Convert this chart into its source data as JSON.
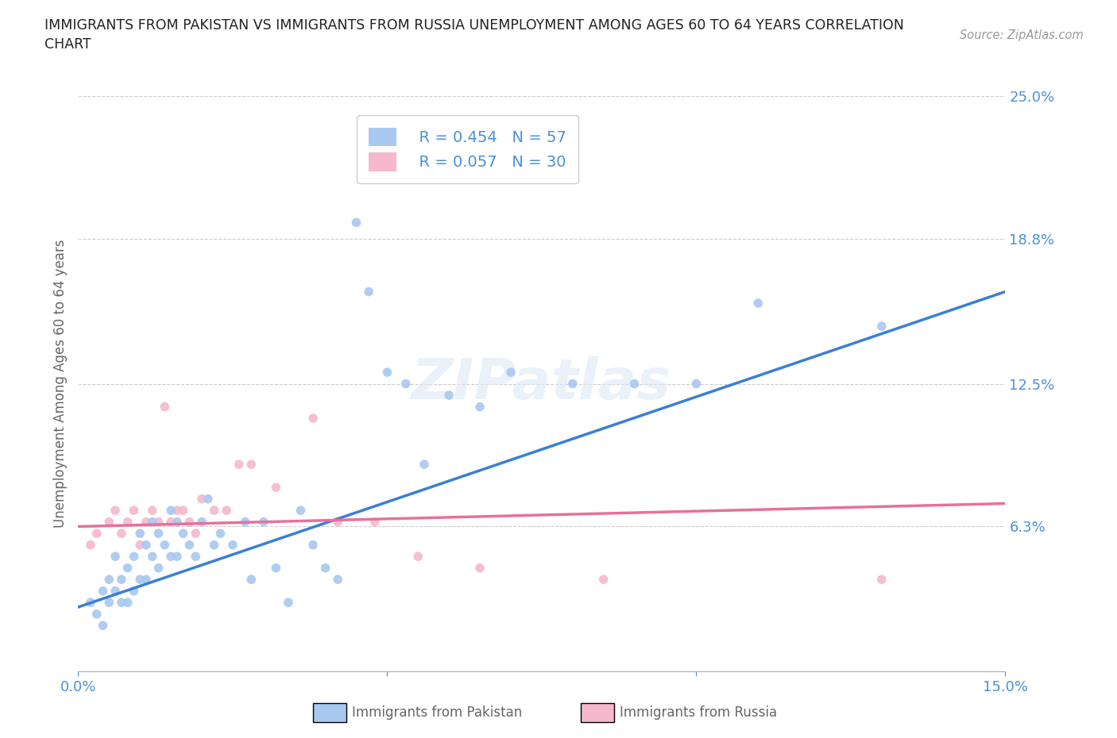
{
  "title": "IMMIGRANTS FROM PAKISTAN VS IMMIGRANTS FROM RUSSIA UNEMPLOYMENT AMONG AGES 60 TO 64 YEARS CORRELATION\nCHART",
  "source_text": "Source: ZipAtlas.com",
  "ylabel": "Unemployment Among Ages 60 to 64 years",
  "xlim": [
    0.0,
    0.15
  ],
  "ylim": [
    0.0,
    0.25
  ],
  "yticks": [
    0.0,
    0.063,
    0.125,
    0.188,
    0.25
  ],
  "ytick_labels": [
    "",
    "6.3%",
    "12.5%",
    "18.8%",
    "25.0%"
  ],
  "xticks": [
    0.0,
    0.05,
    0.1,
    0.15
  ],
  "xtick_labels": [
    "0.0%",
    "",
    "",
    "15.0%"
  ],
  "background_color": "#ffffff",
  "grid_color": "#cccccc",
  "pakistan_color": "#a8c8f0",
  "russia_color": "#f5b8cc",
  "pakistan_line_color": "#3a7fd5",
  "russia_line_color": "#e8709a",
  "legend_R1": "R = 0.454",
  "legend_N1": "N = 57",
  "legend_R2": "R = 0.057",
  "legend_N2": "N = 30",
  "label_pakistan": "Immigrants from Pakistan",
  "label_russia": "Immigrants from Russia",
  "watermark": "ZIPatlas",
  "pakistan_x": [
    0.002,
    0.003,
    0.004,
    0.004,
    0.005,
    0.005,
    0.006,
    0.006,
    0.007,
    0.007,
    0.008,
    0.008,
    0.009,
    0.009,
    0.01,
    0.01,
    0.011,
    0.011,
    0.012,
    0.012,
    0.013,
    0.013,
    0.014,
    0.015,
    0.015,
    0.016,
    0.016,
    0.017,
    0.018,
    0.019,
    0.02,
    0.021,
    0.022,
    0.023,
    0.025,
    0.027,
    0.028,
    0.03,
    0.032,
    0.034,
    0.036,
    0.038,
    0.04,
    0.042,
    0.045,
    0.047,
    0.05,
    0.053,
    0.056,
    0.06,
    0.065,
    0.07,
    0.08,
    0.09,
    0.1,
    0.11,
    0.13
  ],
  "pakistan_y": [
    0.03,
    0.025,
    0.035,
    0.02,
    0.04,
    0.03,
    0.05,
    0.035,
    0.04,
    0.03,
    0.045,
    0.03,
    0.05,
    0.035,
    0.06,
    0.04,
    0.055,
    0.04,
    0.065,
    0.05,
    0.06,
    0.045,
    0.055,
    0.07,
    0.05,
    0.065,
    0.05,
    0.06,
    0.055,
    0.05,
    0.065,
    0.075,
    0.055,
    0.06,
    0.055,
    0.065,
    0.04,
    0.065,
    0.045,
    0.03,
    0.07,
    0.055,
    0.045,
    0.04,
    0.195,
    0.165,
    0.13,
    0.125,
    0.09,
    0.12,
    0.115,
    0.13,
    0.125,
    0.125,
    0.125,
    0.16,
    0.15
  ],
  "russia_x": [
    0.002,
    0.003,
    0.005,
    0.006,
    0.007,
    0.008,
    0.009,
    0.01,
    0.011,
    0.012,
    0.013,
    0.014,
    0.015,
    0.016,
    0.017,
    0.018,
    0.019,
    0.02,
    0.022,
    0.024,
    0.026,
    0.028,
    0.032,
    0.038,
    0.042,
    0.048,
    0.055,
    0.065,
    0.085,
    0.13
  ],
  "russia_y": [
    0.055,
    0.06,
    0.065,
    0.07,
    0.06,
    0.065,
    0.07,
    0.055,
    0.065,
    0.07,
    0.065,
    0.115,
    0.065,
    0.07,
    0.07,
    0.065,
    0.06,
    0.075,
    0.07,
    0.07,
    0.09,
    0.09,
    0.08,
    0.11,
    0.065,
    0.065,
    0.05,
    0.045,
    0.04,
    0.04
  ],
  "pak_line_x0": 0.0,
  "pak_line_y0": 0.028,
  "pak_line_x1": 0.15,
  "pak_line_y1": 0.165,
  "rus_line_x0": 0.0,
  "rus_line_y0": 0.063,
  "rus_line_x1": 0.15,
  "rus_line_y1": 0.073
}
